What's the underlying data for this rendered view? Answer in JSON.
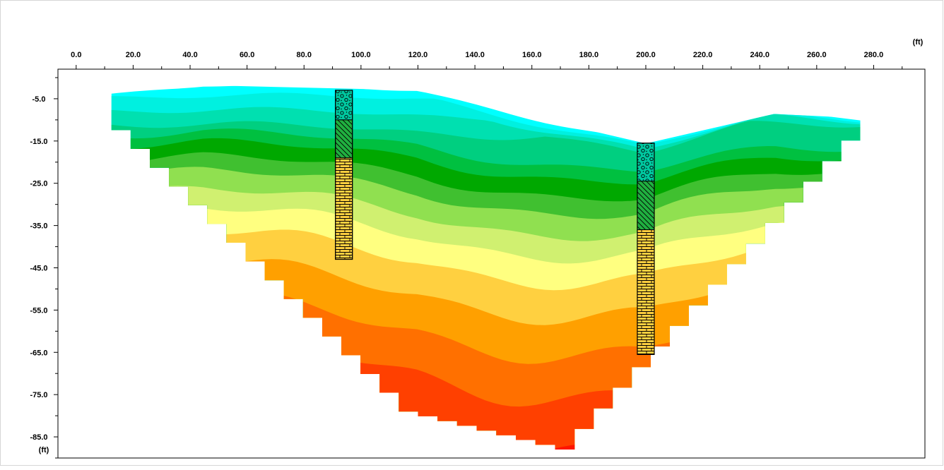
{
  "chart_data": {
    "type": "heatmap",
    "title": "",
    "x_unit_label": "(ft)",
    "y_unit_label": "(ft)",
    "xlim": [
      -6.4,
      298
    ],
    "ylim": [
      -90,
      2
    ],
    "x_ticks": [
      0,
      20,
      40,
      60,
      80,
      100,
      120,
      140,
      160,
      180,
      200,
      220,
      240,
      260,
      280
    ],
    "x_tick_labels": [
      "0.0",
      "20.0",
      "40.0",
      "60.0",
      "80.0",
      "100.0",
      "120.0",
      "140.0",
      "160.0",
      "180.0",
      "200.0",
      "220.0",
      "240.0",
      "260.0",
      "280.0"
    ],
    "y_ticks": [
      -5,
      -15,
      -25,
      -35,
      -45,
      -55,
      -65,
      -75,
      -85
    ],
    "y_tick_labels": [
      "-5.0",
      "-15.0",
      "-25.0",
      "-35.0",
      "-45.0",
      "-55.0",
      "-65.0",
      "-75.0",
      "-85.0"
    ],
    "surface_profile": [
      [
        12.4,
        -3.6
      ],
      [
        45,
        -1.8
      ],
      [
        120,
        -3.0
      ],
      [
        200,
        -15.6
      ],
      [
        245,
        -8.6
      ],
      [
        282,
        -9.8
      ]
    ],
    "bottom_profile": [
      [
        12.4,
        -8
      ],
      [
        120,
        -79
      ],
      [
        175,
        -88
      ],
      [
        282,
        -10
      ]
    ],
    "color_bands": [
      {
        "top": 0,
        "color": "#00ffff"
      },
      {
        "top": -4,
        "color": "#00f0e0"
      },
      {
        "top": -7,
        "color": "#00e0b0"
      },
      {
        "top": -10,
        "color": "#00cf80"
      },
      {
        "top": -12,
        "color": "#00c040"
      },
      {
        "top": -14,
        "color": "#00a800"
      },
      {
        "top": -17,
        "color": "#40c030"
      },
      {
        "top": -20,
        "color": "#90e050"
      },
      {
        "top": -24,
        "color": "#d0f070"
      },
      {
        "top": -28,
        "color": "#ffff80"
      },
      {
        "top": -33,
        "color": "#ffd040"
      },
      {
        "top": -40,
        "color": "#ffa000"
      },
      {
        "top": -48,
        "color": "#ff7000"
      },
      {
        "top": -57,
        "color": "#ff4000"
      },
      {
        "top": -68,
        "color": "#ff1500"
      }
    ],
    "boreholes": [
      {
        "x": 94,
        "top": -3,
        "bottom": -43,
        "layers": [
          {
            "from": -3,
            "to": -10,
            "material": "gravel"
          },
          {
            "from": -10,
            "to": -19,
            "material": "clay"
          },
          {
            "from": -19,
            "to": -43,
            "material": "limestone"
          }
        ]
      },
      {
        "x": 200,
        "top": -15.5,
        "bottom": -65.5,
        "layers": [
          {
            "from": -15.5,
            "to": -24.5,
            "material": "gravel"
          },
          {
            "from": -24.5,
            "to": -36,
            "material": "clay"
          },
          {
            "from": -36,
            "to": -65.5,
            "material": "limestone"
          }
        ]
      }
    ],
    "grid": false,
    "legend": "none"
  }
}
